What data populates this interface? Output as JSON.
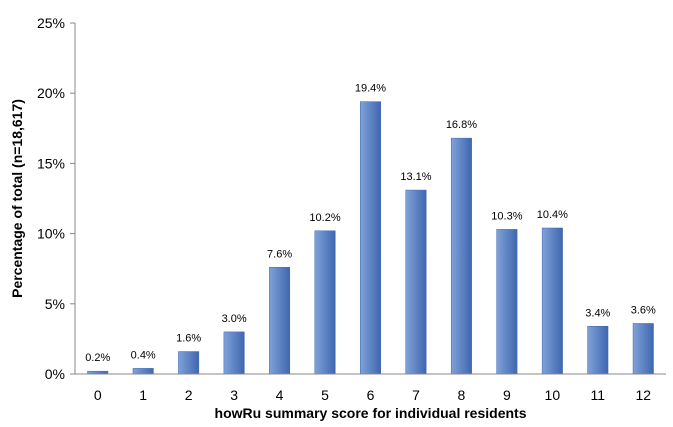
{
  "chart_data": {
    "type": "bar",
    "categories": [
      "0",
      "1",
      "2",
      "3",
      "4",
      "5",
      "6",
      "7",
      "8",
      "9",
      "10",
      "11",
      "12"
    ],
    "values": [
      0.2,
      0.4,
      1.6,
      3.0,
      7.6,
      10.2,
      19.4,
      13.1,
      16.8,
      10.3,
      10.4,
      3.4,
      3.6
    ],
    "data_labels": [
      "0.2%",
      "0.4%",
      "1.6%",
      "3.0%",
      "7.6%",
      "10.2%",
      "19.4%",
      "13.1%",
      "16.8%",
      "10.3%",
      "10.4%",
      "3.4%",
      "3.6%"
    ],
    "y_ticks": [
      0,
      5,
      10,
      15,
      20,
      25
    ],
    "y_tick_labels": [
      "0%",
      "5%",
      "10%",
      "15%",
      "20%",
      "25%"
    ],
    "title": "",
    "xlabel": "howRu summary score for individual residents",
    "ylabel": "Percentage of total (n=18,617)",
    "ylim": [
      0,
      25
    ],
    "grid": false,
    "legend": "none",
    "bar_color_light": "#7fa2d8",
    "bar_color_dark": "#3f67b0"
  }
}
